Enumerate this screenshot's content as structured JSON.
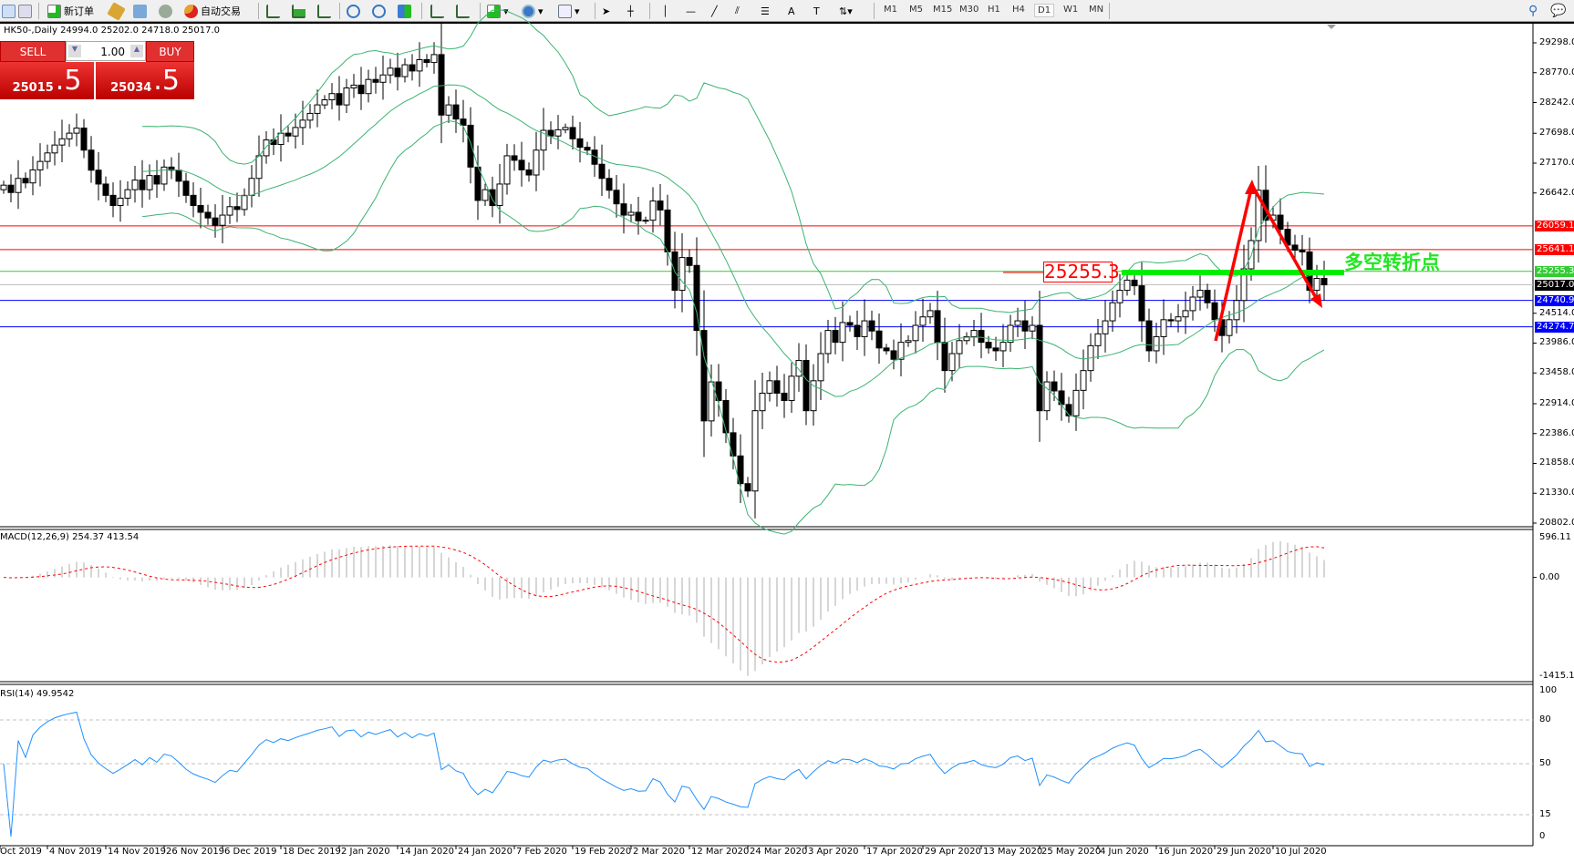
{
  "toolbar": {
    "new_order": "新订单",
    "auto_trading": "自动交易",
    "timeframes": [
      "M1",
      "M5",
      "M15",
      "M30",
      "H1",
      "H4",
      "D1",
      "W1",
      "MN"
    ],
    "active_timeframe": "D1"
  },
  "header": {
    "symbol_info": "HK50-,Daily  24994.0 25202.0 24718.0 25017.0"
  },
  "trade_panel": {
    "sell_label": "SELL",
    "buy_label": "BUY",
    "lot": "1.00",
    "sell_main": "25015",
    "sell_frac": ".5",
    "buy_main": "25034",
    "buy_frac": ".5"
  },
  "price_axis": [
    "29298.0",
    "28770.0",
    "28242.0",
    "27698.0",
    "27170.0",
    "26642.0",
    "24514.0",
    "23986.0",
    "23458.0",
    "22914.0",
    "22386.0",
    "21858.0",
    "21330.0",
    "20802.0"
  ],
  "levels": [
    {
      "value": "26059.1",
      "color": "#ff0000"
    },
    {
      "value": "25641.1",
      "color": "#ff0000"
    },
    {
      "value": "25255.3",
      "color": "#33cc33"
    },
    {
      "value": "25017.0",
      "color": "#000000"
    },
    {
      "value": "24740.9",
      "color": "#0000ff"
    },
    {
      "value": "24274.7",
      "color": "#0000ff"
    }
  ],
  "annotations": {
    "level_label": "25255.3",
    "turn_point_text": "多空转折点",
    "arrow_color": "#ff0000",
    "bar_color": "#00ee00"
  },
  "macd": {
    "label": "MACD(12,26,9) 254.37 413.54",
    "axis": [
      "596.11",
      "0.00",
      "-1415.19"
    ]
  },
  "rsi": {
    "label": "RSI(14) 49.9542",
    "axis": [
      "100",
      "80",
      "50",
      "15",
      "0"
    ]
  },
  "chart_data": {
    "type": "candlestick",
    "symbol": "HK50-",
    "timeframe": "Daily",
    "ylim": [
      20802,
      29298
    ],
    "indicators": [
      "Bollinger Bands(20,2)",
      "MACD(12,26,9)",
      "RSI(14)"
    ],
    "closes": [
      26780,
      26650,
      26900,
      26820,
      27050,
      27200,
      27350,
      27490,
      27600,
      27700,
      27790,
      27400,
      27045,
      26800,
      26600,
      26420,
      26550,
      26700,
      26870,
      26700,
      26950,
      26800,
      27100,
      27045,
      26850,
      26600,
      26420,
      26300,
      26200,
      26070,
      26250,
      26400,
      26350,
      26600,
      26900,
      27300,
      27580,
      27500,
      27700,
      27650,
      27800,
      27930,
      28050,
      28200,
      28290,
      28400,
      28200,
      28500,
      28550,
      28400,
      28650,
      28600,
      28730,
      28850,
      28700,
      28910,
      28800,
      29000,
      28950,
      29090,
      28020,
      28200,
      27950,
      27840,
      27100,
      26510,
      26700,
      26420,
      26800,
      27300,
      27220,
      27050,
      26960,
      27400,
      27750,
      27650,
      27760,
      27800,
      27600,
      27450,
      27400,
      27150,
      26900,
      26690,
      26450,
      26250,
      26300,
      26150,
      26160,
      26500,
      26340,
      25600,
      24920,
      25500,
      25360,
      24210,
      22610,
      23300,
      22970,
      22400,
      21990,
      21500,
      21370,
      22790,
      23100,
      23320,
      23100,
      22970,
      23400,
      23680,
      22790,
      23320,
      23800,
      24210,
      24000,
      24350,
      24300,
      24100,
      24380,
      24200,
      23900,
      23850,
      23700,
      24000,
      24030,
      24300,
      24450,
      24560,
      24000,
      23500,
      23800,
      24030,
      24100,
      24210,
      24000,
      23900,
      23850,
      24000,
      24300,
      24380,
      24200,
      24300,
      22790,
      23300,
      23140,
      22900,
      22700,
      23150,
      23500,
      23940,
      24150,
      24380,
      24700,
      24920,
      25100,
      25000,
      24380,
      23850,
      24100,
      24400,
      24380,
      24450,
      24560,
      24800,
      24920,
      24700,
      24400,
      24120,
      24400,
      24740,
      25300,
      25800,
      26690,
      26160,
      26250,
      26000,
      25720,
      25630,
      25600,
      24920,
      25130,
      25017
    ],
    "x_labels": [
      {
        "text": "Oct 2019",
        "bar": -1
      },
      {
        "text": "4 Nov 2019",
        "bar": 6
      },
      {
        "text": "14 Nov 2019",
        "bar": 14
      },
      {
        "text": "26 Nov 2019",
        "bar": 22
      },
      {
        "text": "6 Dec 2019",
        "bar": 30
      },
      {
        "text": "18 Dec 2019",
        "bar": 38
      },
      {
        "text": "2 Jan 2020",
        "bar": 46
      },
      {
        "text": "14 Jan 2020",
        "bar": 54
      },
      {
        "text": "24 Jan 2020",
        "bar": 62
      },
      {
        "text": "7 Feb 2020",
        "bar": 70
      },
      {
        "text": "19 Feb 2020",
        "bar": 78
      },
      {
        "text": "2 Mar 2020",
        "bar": 86
      },
      {
        "text": "12 Mar 2020",
        "bar": 94
      },
      {
        "text": "24 Mar 2020",
        "bar": 102
      },
      {
        "text": "3 Apr 2020",
        "bar": 110
      },
      {
        "text": "17 Apr 2020",
        "bar": 118
      },
      {
        "text": "29 Apr 2020",
        "bar": 126
      },
      {
        "text": "13 May 2020",
        "bar": 134
      },
      {
        "text": "25 May 2020",
        "bar": 142
      },
      {
        "text": "4 Jun 2020",
        "bar": 150
      },
      {
        "text": "16 Jun 2020",
        "bar": 158
      },
      {
        "text": "29 Jun 2020",
        "bar": 166
      },
      {
        "text": "10 Jul 2020",
        "bar": 174
      }
    ]
  }
}
